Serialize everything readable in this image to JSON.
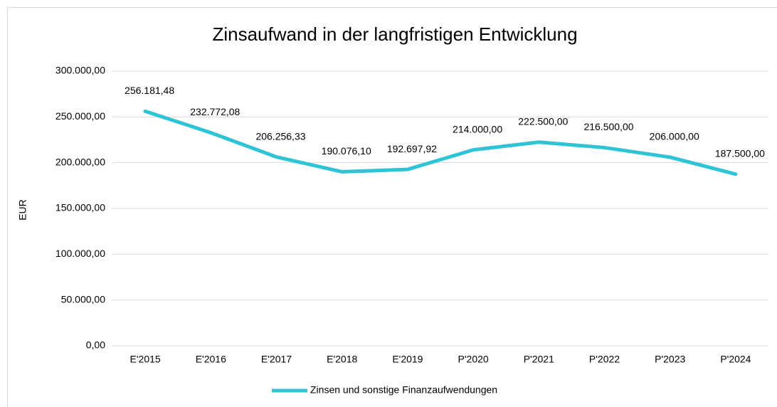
{
  "chart_data": {
    "type": "line",
    "title": "Zinsaufwand in der langfristigen Entwicklung",
    "ylabel": "EUR",
    "categories": [
      "E'2015",
      "E'2016",
      "E'2017",
      "E'2018",
      "E'2019",
      "P'2020",
      "P'2021",
      "P'2022",
      "P'2023",
      "P'2024"
    ],
    "series": [
      {
        "name": "Zinsen und sonstige Finanzaufwendungen",
        "color": "#2ec3d5",
        "values": [
          256181.48,
          232772.08,
          206256.33,
          190076.1,
          192697.92,
          214000.0,
          222500.0,
          216500.0,
          206000.0,
          187500.0
        ],
        "value_labels": [
          "256.181,48",
          "232.772,08",
          "206.256,33",
          "190.076,10",
          "192.697,92",
          "214.000,00",
          "222.500,00",
          "216.500,00",
          "206.000,00",
          "187.500,00"
        ]
      }
    ],
    "ylim": [
      0,
      300000
    ],
    "yticks": [
      {
        "value": 0,
        "label": "0,00"
      },
      {
        "value": 50000,
        "label": "50.000,00"
      },
      {
        "value": 100000,
        "label": "100.000,00"
      },
      {
        "value": 150000,
        "label": "150.000,00"
      },
      {
        "value": 200000,
        "label": "200.000,00"
      },
      {
        "value": 250000,
        "label": "250.000,00"
      },
      {
        "value": 300000,
        "label": "300.000,00"
      }
    ],
    "grid": true,
    "legend": "bottom"
  }
}
